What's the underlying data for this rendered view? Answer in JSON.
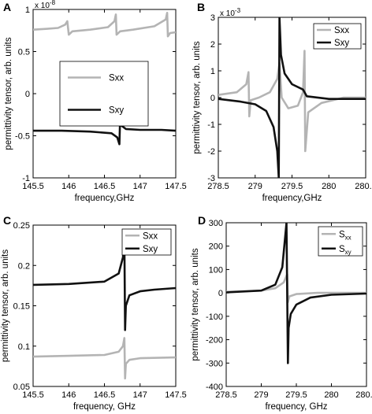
{
  "colors": {
    "sxx": "#b4b4b4",
    "sxy": "#111111",
    "axis": "#000000",
    "background": "#ffffff"
  },
  "chart_data": [
    {
      "panel": "A",
      "type": "line",
      "xlabel": "frequency,GHz",
      "ylabel": "permittivity tensor, arb. units",
      "multiplier": {
        "base": "x 10",
        "exp": "-8"
      },
      "xlim": [
        145.5,
        147.5
      ],
      "ylim": [
        -1,
        1
      ],
      "xticks": [
        "145.5",
        "146",
        "146.5",
        "147",
        "147.5"
      ],
      "yticks": [
        "-1",
        "-0.5",
        "0",
        "0.5",
        "1"
      ],
      "legend": {
        "position": "center-right",
        "boxed": true
      },
      "series": [
        {
          "name": "Sxx",
          "color": "#b4b4b4",
          "x": [
            145.5,
            145.7,
            145.85,
            145.95,
            145.98,
            146.0,
            146.05,
            146.3,
            146.55,
            146.64,
            146.66,
            146.67,
            146.72,
            146.9,
            147.2,
            147.36,
            147.38,
            147.39,
            147.42,
            147.5
          ],
          "y": [
            0.76,
            0.77,
            0.78,
            0.82,
            0.86,
            0.7,
            0.74,
            0.76,
            0.79,
            0.86,
            0.94,
            0.7,
            0.74,
            0.76,
            0.8,
            0.88,
            0.96,
            0.68,
            0.72,
            0.73
          ]
        },
        {
          "name": "Sxy",
          "color": "#111111",
          "x": [
            145.5,
            145.9,
            146.3,
            146.6,
            146.68,
            146.71,
            146.72,
            146.74,
            146.8,
            147.0,
            147.3,
            147.5
          ],
          "y": [
            -0.44,
            -0.44,
            -0.45,
            -0.47,
            -0.52,
            -0.6,
            -0.3,
            -0.38,
            -0.42,
            -0.43,
            -0.43,
            -0.44
          ]
        }
      ]
    },
    {
      "panel": "B",
      "type": "line",
      "xlabel": "frequency,GHz",
      "ylabel": "permittivity tensor, arb. units",
      "multiplier": {
        "base": "x 10",
        "exp": "-3"
      },
      "xlim": [
        278.5,
        280.5
      ],
      "ylim": [
        -3,
        3
      ],
      "xticks": [
        "278.5",
        "279",
        "279.5",
        "280",
        "280.5"
      ],
      "yticks": [
        "-3",
        "-2",
        "-1",
        "0",
        "1",
        "2",
        "3"
      ],
      "legend": {
        "position": "top-right",
        "boxed": true
      },
      "series": [
        {
          "name": "Sxx",
          "color": "#b4b4b4",
          "x": [
            278.5,
            278.75,
            278.88,
            278.91,
            278.92,
            278.94,
            279.05,
            279.2,
            279.3,
            279.33,
            279.36,
            279.45,
            279.58,
            279.65,
            279.67,
            279.68,
            279.72,
            279.9,
            280.2,
            280.5
          ],
          "y": [
            0.1,
            0.2,
            0.5,
            0.95,
            -0.7,
            -0.1,
            0.0,
            0.2,
            0.7,
            1.3,
            0.0,
            -0.4,
            -0.3,
            0.2,
            1.75,
            -2.0,
            -0.55,
            -0.2,
            0.0,
            0.0
          ]
        },
        {
          "name": "Sxy",
          "color": "#111111",
          "x": [
            278.5,
            278.8,
            279.0,
            279.15,
            279.25,
            279.3,
            279.32,
            279.33,
            279.35,
            279.4,
            279.5,
            279.65,
            279.7,
            280.0,
            280.5
          ],
          "y": [
            -0.05,
            -0.15,
            -0.25,
            -0.5,
            -1.1,
            -2.0,
            -3.0,
            3.0,
            1.6,
            0.9,
            0.5,
            0.3,
            0.05,
            -0.05,
            -0.05
          ]
        }
      ]
    },
    {
      "panel": "C",
      "type": "line",
      "xlabel": "frequency, GHz",
      "ylabel": "permittivity tensor, arb. units",
      "xlim": [
        145.5,
        147.5
      ],
      "ylim": [
        0.05,
        0.25
      ],
      "xticks": [
        "145.5",
        "146",
        "146.5",
        "147",
        "147.5"
      ],
      "yticks": [
        "0.05",
        "0.1",
        "0.15",
        "0.2",
        "0.25"
      ],
      "legend": {
        "position": "top-right",
        "boxed": true
      },
      "series": [
        {
          "name": "Sxx",
          "color": "#b4b4b4",
          "x": [
            145.5,
            146.0,
            146.5,
            146.7,
            146.76,
            146.78,
            146.79,
            146.8,
            146.85,
            147.0,
            147.5
          ],
          "y": [
            0.087,
            0.088,
            0.089,
            0.093,
            0.1,
            0.11,
            0.06,
            0.078,
            0.083,
            0.085,
            0.086
          ]
        },
        {
          "name": "Sxy",
          "color": "#111111",
          "x": [
            145.5,
            146.0,
            146.5,
            146.7,
            146.76,
            146.78,
            146.79,
            146.8,
            146.85,
            147.0,
            147.2,
            147.5
          ],
          "y": [
            0.176,
            0.177,
            0.18,
            0.19,
            0.21,
            0.233,
            0.12,
            0.15,
            0.163,
            0.168,
            0.17,
            0.172
          ]
        }
      ]
    },
    {
      "panel": "D",
      "type": "line",
      "xlabel": "frequency, GHz",
      "ylabel": "permittivity tensor, arb. units",
      "xlim": [
        278.5,
        280.5
      ],
      "ylim": [
        -400,
        300
      ],
      "xticks": [
        "278.5",
        "279",
        "279.5",
        "280",
        "280.5"
      ],
      "yticks": [
        "-400",
        "-300",
        "-200",
        "-100",
        "0",
        "100",
        "200",
        "300"
      ],
      "legend": {
        "position": "top-right",
        "boxed": true
      },
      "series": [
        {
          "name": "S",
          "sub": "xx",
          "color": "#b4b4b4",
          "x": [
            278.5,
            279.0,
            279.2,
            279.32,
            279.37,
            279.38,
            279.4,
            279.5,
            279.8,
            280.5
          ],
          "y": [
            5,
            10,
            20,
            45,
            80,
            -40,
            -15,
            -5,
            0,
            0
          ]
        },
        {
          "name": "S",
          "sub": "xy",
          "color": "#111111",
          "x": [
            278.5,
            279.0,
            279.2,
            279.3,
            279.36,
            279.38,
            279.39,
            279.42,
            279.5,
            279.7,
            280.0,
            280.5
          ],
          "y": [
            2,
            10,
            35,
            110,
            300,
            -300,
            -150,
            -90,
            -50,
            -20,
            -8,
            -3
          ]
        }
      ]
    }
  ]
}
